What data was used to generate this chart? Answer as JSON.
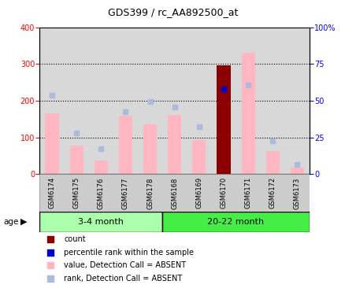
{
  "title": "GDS399 / rc_AA892500_at",
  "samples": [
    "GSM6174",
    "GSM6175",
    "GSM6176",
    "GSM6177",
    "GSM6178",
    "GSM6168",
    "GSM6169",
    "GSM6170",
    "GSM6171",
    "GSM6172",
    "GSM6173"
  ],
  "value_absent": [
    165,
    77,
    37,
    160,
    135,
    162,
    93,
    null,
    330,
    62,
    18
  ],
  "rank_absent_left": [
    215,
    113,
    70,
    170,
    197,
    183,
    130,
    null,
    243,
    90,
    27
  ],
  "count_present": [
    null,
    null,
    null,
    null,
    null,
    null,
    null,
    297,
    null,
    null,
    null
  ],
  "percentile_present_left": [
    null,
    null,
    null,
    null,
    null,
    null,
    null,
    233,
    null,
    null,
    null
  ],
  "group1_count": 5,
  "group2_count": 6,
  "group1_label": "3-4 month",
  "group2_label": "20-22 month",
  "age_label": "age",
  "ylim_left": [
    0,
    400
  ],
  "ylim_right": [
    0,
    100
  ],
  "yticks_left": [
    0,
    100,
    200,
    300,
    400
  ],
  "yticks_right": [
    0,
    25,
    50,
    75,
    100
  ],
  "color_count": "#8B0000",
  "color_percentile": "#0000CC",
  "color_value_absent": "#FFB6C1",
  "color_rank_absent": "#AABBDD",
  "background_color": "#ffffff",
  "plot_bg": "#d8d8d8",
  "xtick_bg": "#cccccc",
  "group1_bg": "#aaffaa",
  "group2_bg": "#44ee44",
  "hline_color": "black",
  "legend_labels": [
    "count",
    "percentile rank within the sample",
    "value, Detection Call = ABSENT",
    "rank, Detection Call = ABSENT"
  ]
}
